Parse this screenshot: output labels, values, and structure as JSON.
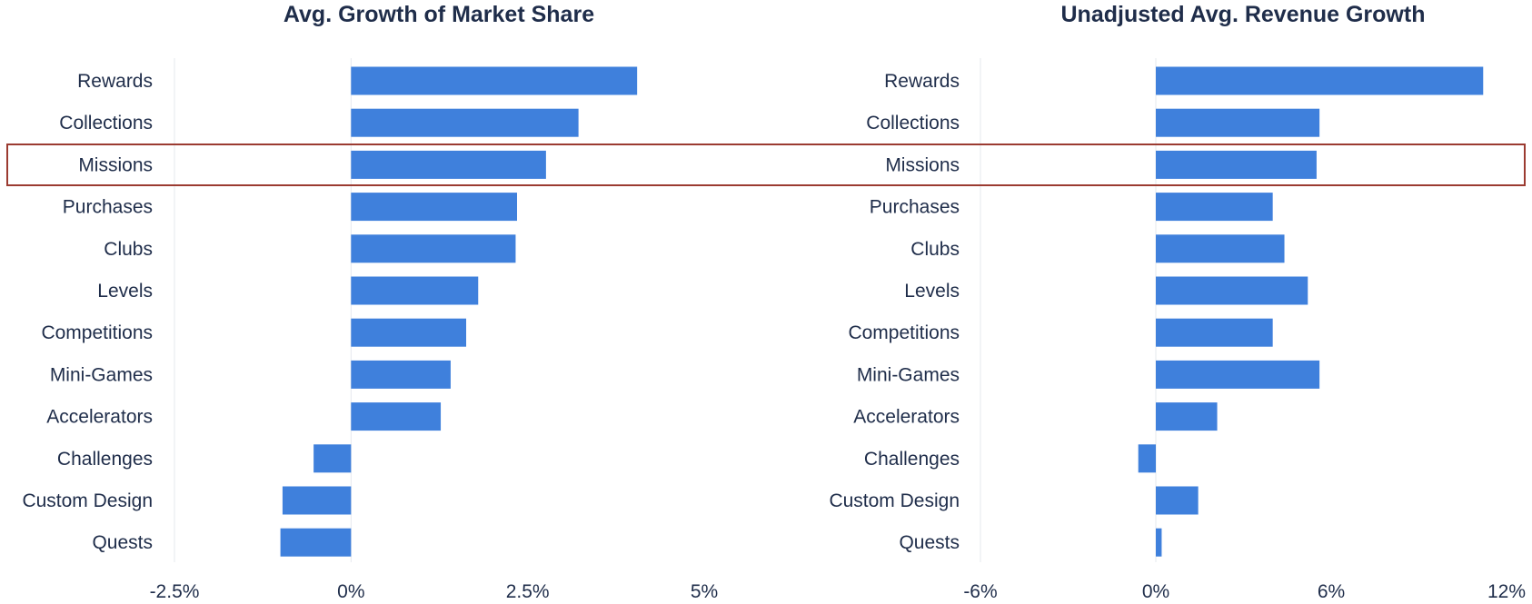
{
  "chart_data": [
    {
      "type": "bar",
      "orientation": "horizontal",
      "title": "Avg. Growth of Market Share",
      "categories": [
        "Rewards",
        "Collections",
        "Missions",
        "Purchases",
        "Clubs",
        "Levels",
        "Competitions",
        "Mini-Games",
        "Accelerators",
        "Challenges",
        "Custom Design",
        "Quests"
      ],
      "values": [
        4.05,
        3.22,
        2.76,
        2.35,
        2.33,
        1.8,
        1.63,
        1.41,
        1.27,
        -0.53,
        -0.97,
        -1.0
      ],
      "unit": "%",
      "xlim": [
        -2.5,
        5
      ],
      "xticks": [
        -2.5,
        0,
        2.5,
        5
      ],
      "xtick_labels": [
        "-2.5%",
        "0%",
        "2.5%",
        "5%"
      ],
      "xlabel": "",
      "ylabel": "",
      "bar_color": "#3f80dc",
      "highlighted_category": "Missions",
      "grid": false,
      "legend": "none"
    },
    {
      "type": "bar",
      "orientation": "horizontal",
      "title": "Unadjusted Avg. Revenue Growth",
      "categories": [
        "Rewards",
        "Collections",
        "Missions",
        "Purchases",
        "Clubs",
        "Levels",
        "Competitions",
        "Mini-Games",
        "Accelerators",
        "Challenges",
        "Custom Design",
        "Quests"
      ],
      "values": [
        11.2,
        5.6,
        5.5,
        4.0,
        4.4,
        5.2,
        4.0,
        5.6,
        2.1,
        -0.6,
        1.45,
        0.2
      ],
      "unit": "%",
      "xlim": [
        -6,
        12
      ],
      "xticks": [
        -6,
        0,
        6,
        12
      ],
      "xtick_labels": [
        "-6%",
        "0%",
        "6%",
        "12%"
      ],
      "xlabel": "",
      "ylabel": "",
      "bar_color": "#3f80dc",
      "highlighted_category": "Missions",
      "grid": false,
      "legend": "none"
    }
  ],
  "colors": {
    "bar": "#3f80dc",
    "text": "#1f2d4a",
    "highlight_border": "#9b3b31",
    "axis_line": "#e6e9ee"
  }
}
